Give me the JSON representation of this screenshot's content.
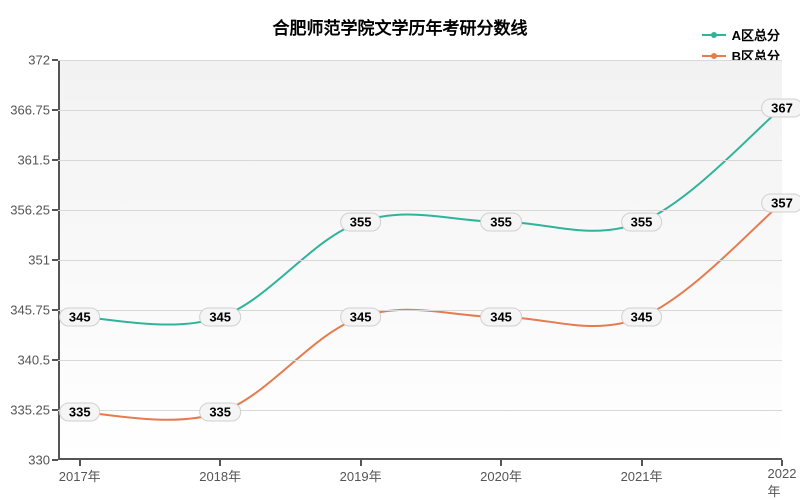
{
  "chart": {
    "title": "合肥师范学院文学历年考研分数线",
    "title_fontsize": 17,
    "background_color": "#ffffff",
    "plot_bg_gradient": [
      "#f2f2f2",
      "#ffffff"
    ],
    "grid_color": "#d8d8d8",
    "axis_color": "#555555",
    "label_fontsize": 13,
    "tick_fontsize": 13,
    "x": {
      "categories": [
        "2017年",
        "2018年",
        "2019年",
        "2020年",
        "2021年",
        "2022年"
      ],
      "positions_pct": [
        3,
        22.4,
        41.8,
        61.2,
        80.6,
        100
      ]
    },
    "y": {
      "min": 330,
      "max": 372,
      "ticks": [
        330,
        335.25,
        340.5,
        345.75,
        351,
        356.25,
        361.5,
        366.75,
        372
      ]
    },
    "series": [
      {
        "name": "A区总分",
        "color": "#2fb39a",
        "values": [
          345,
          345,
          355,
          355,
          355,
          367
        ],
        "line_width": 2
      },
      {
        "name": "B区总分",
        "color": "#e57b4f",
        "values": [
          335,
          335,
          345,
          345,
          345,
          357
        ],
        "line_width": 2
      }
    ],
    "data_label_bg": "#f5f5f5",
    "data_label_border": "#d0d0d0",
    "data_label_fontsize": 13
  }
}
